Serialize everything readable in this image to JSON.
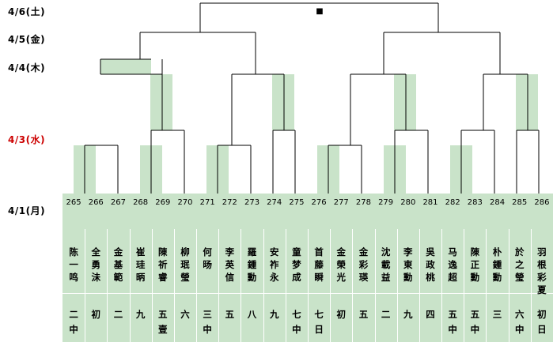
{
  "dates": [
    {
      "label": "4/6(土)",
      "color": "#000000"
    },
    {
      "label": "4/5(金)",
      "color": "#000000"
    },
    {
      "label": "4/4(木)",
      "color": "#000000"
    },
    {
      "label": "4/3(水)",
      "color": "#cc0000"
    },
    {
      "label": "4/1(月)",
      "color": "#000000"
    }
  ],
  "winner_mark": "■",
  "colors": {
    "highlight": "#c9e3c9",
    "line": "#000000",
    "date_highlight": "#cc0000"
  },
  "players": [
    {
      "num": "265",
      "name": "陈一鸣",
      "rank": "二中"
    },
    {
      "num": "266",
      "name": "全勇沬",
      "rank": "初"
    },
    {
      "num": "267",
      "name": "金基範",
      "rank": "二"
    },
    {
      "num": "268",
      "name": "崔珪昞",
      "rank": "九"
    },
    {
      "num": "269",
      "name": "陳祈睿",
      "rank": "五壹"
    },
    {
      "num": "270",
      "name": "柳珉瑩",
      "rank": "六"
    },
    {
      "num": "271",
      "name": "何旸",
      "rank": "三中"
    },
    {
      "num": "272",
      "name": "李英信",
      "rank": "五"
    },
    {
      "num": "273",
      "name": "羅鍾勳",
      "rank": "八"
    },
    {
      "num": "274",
      "name": "安祚永",
      "rank": "九"
    },
    {
      "num": "275",
      "name": "童梦成",
      "rank": "七中"
    },
    {
      "num": "276",
      "name": "首藤瞬",
      "rank": "七日"
    },
    {
      "num": "277",
      "name": "金榮光",
      "rank": "初"
    },
    {
      "num": "278",
      "name": "金彩瑛",
      "rank": "五"
    },
    {
      "num": "279",
      "name": "沈載益",
      "rank": "二"
    },
    {
      "num": "280",
      "name": "李東勳",
      "rank": "九"
    },
    {
      "num": "281",
      "name": "吳政桃",
      "rank": "四"
    },
    {
      "num": "282",
      "name": "马逸超",
      "rank": "五中"
    },
    {
      "num": "283",
      "name": "陳正勳",
      "rank": "五中"
    },
    {
      "num": "284",
      "name": "朴鍾勳",
      "rank": "三"
    },
    {
      "num": "285",
      "name": "於之瑩",
      "rank": "六中"
    },
    {
      "num": "286",
      "name": "羽根彩夏",
      "rank": "初日"
    }
  ]
}
